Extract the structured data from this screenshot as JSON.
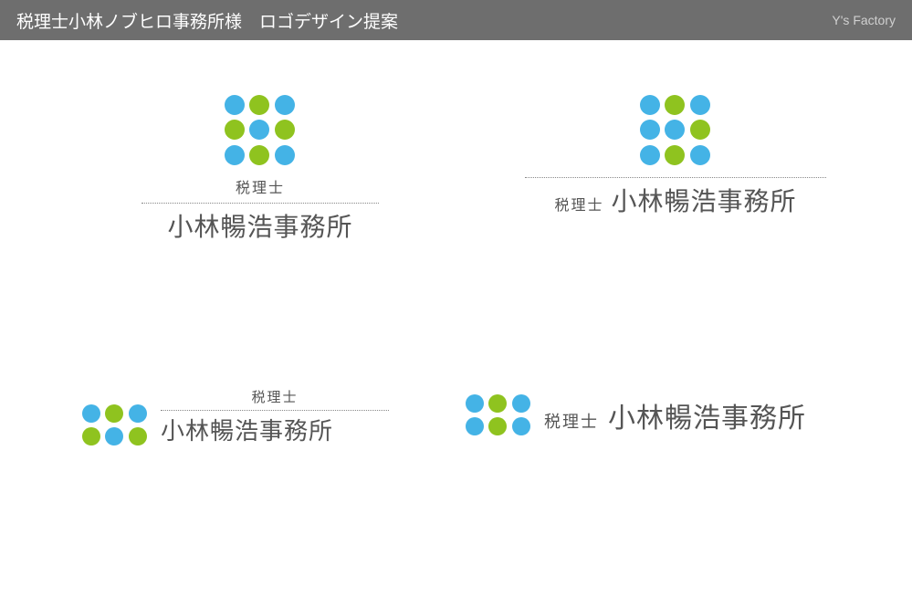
{
  "colors": {
    "header_bg": "#6e6e6e",
    "header_text": "#ffffff",
    "credit_text": "#d0d0d0",
    "dot_blue": "#44b3e6",
    "dot_green": "#8fc31f",
    "text_dark": "#555555",
    "dotted": "#888888"
  },
  "header": {
    "title": "税理士小林ノブヒロ事務所様　ロゴデザイン提案",
    "credit": "Y's Factory"
  },
  "logo_text": {
    "prefix": "税理士",
    "name": "小林暢浩事務所"
  },
  "dot_patterns": {
    "grid3x3_a": [
      "blue",
      "green",
      "blue",
      "green",
      "blue",
      "green",
      "blue",
      "green",
      "blue"
    ],
    "grid3x3_b": [
      "blue",
      "green",
      "blue",
      "blue",
      "blue",
      "green",
      "blue",
      "green",
      "blue"
    ],
    "grid2x3_a": [
      "blue",
      "green",
      "blue",
      "green",
      "blue",
      "green"
    ],
    "grid2x3_b": [
      "blue",
      "green",
      "blue",
      "blue",
      "green",
      "blue"
    ]
  }
}
